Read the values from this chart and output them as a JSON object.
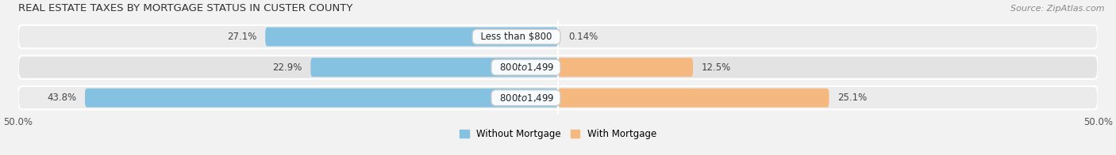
{
  "title": "REAL ESTATE TAXES BY MORTGAGE STATUS IN CUSTER COUNTY",
  "source": "Source: ZipAtlas.com",
  "bars": [
    {
      "label": "Less than $800",
      "without_mortgage": 27.1,
      "with_mortgage": 0.14
    },
    {
      "label": "$800 to $1,499",
      "without_mortgage": 22.9,
      "with_mortgage": 12.5
    },
    {
      "label": "$800 to $1,499",
      "without_mortgage": 43.8,
      "with_mortgage": 25.1
    }
  ],
  "xlim": [
    -50.0,
    50.0
  ],
  "color_without": "#85C1E0",
  "color_with": "#F5B97F",
  "bar_height": 0.62,
  "bg_color": "#f2f2f2",
  "row_bg_colors": [
    "#ebebeb",
    "#e3e3e3",
    "#ebebeb"
  ],
  "title_fontsize": 9.5,
  "value_fontsize": 8.5,
  "label_fontsize": 8.5,
  "tick_fontsize": 8.5,
  "legend_fontsize": 8.5,
  "source_fontsize": 8.0
}
